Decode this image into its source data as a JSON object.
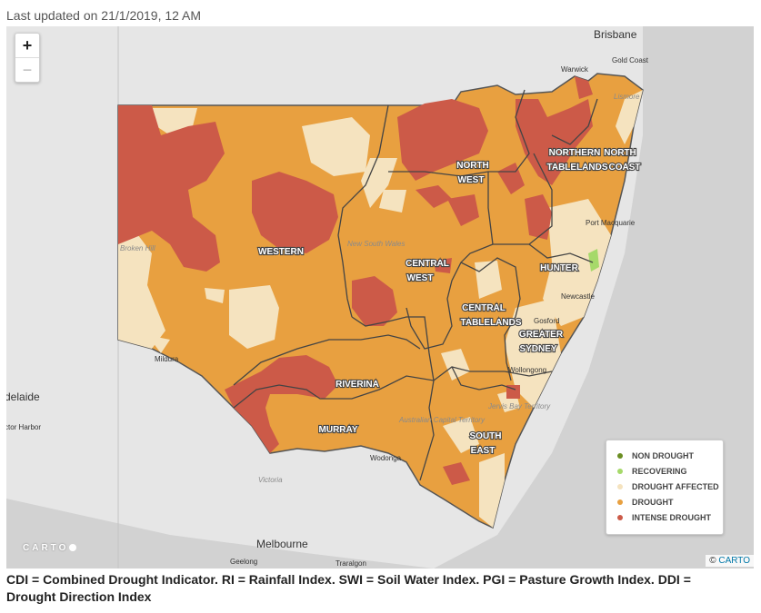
{
  "header": {
    "last_updated": "Last updated on 21/1/2019, 12 AM"
  },
  "map": {
    "zoom_in": "+",
    "zoom_out": "−",
    "regions": {
      "western": "WESTERN",
      "north_west_1": "NORTH",
      "north_west_2": "WEST",
      "northern_tablelands_1": "NORTHERN",
      "northern_tablelands_2": "TABLELANDS",
      "north_coast_1": "NORTH",
      "north_coast_2": "COAST",
      "hunter": "HUNTER",
      "central_west_1": "CENTRAL",
      "central_west_2": "WEST",
      "central_tablelands_1": "CENTRAL",
      "central_tablelands_2": "TABLELANDS",
      "greater_sydney_1": "GREATER",
      "greater_sydney_2": "SYDNEY",
      "riverina": "RIVERINA",
      "murray": "MURRAY",
      "south_east_1": "SOUTH",
      "south_east_2": "EAST"
    },
    "places": {
      "brisbane": "Brisbane",
      "gold_coast": "Gold Coast",
      "warwick": "Warwick",
      "lismore": "Lismore",
      "port_macquarie": "Port Macquarie",
      "newcastle": "Newcastle",
      "gosford": "Gosford",
      "wollongong": "Wollongong",
      "broken_hill": "Broken Hill",
      "mildura": "Mildura",
      "adelaide": "delaide",
      "victor_harbor": "ctor Harbor",
      "wodonga": "Wodonga",
      "victoria": "Victoria",
      "melbourne": "Melbourne",
      "geelong": "Geelong",
      "traralgon": "Traralgon",
      "new_south_wales": "New South Wales",
      "act": "Australian Capital Territory",
      "jervis_bay": "Jervis Bay Territory"
    },
    "legend": [
      {
        "label": "NON DROUGHT",
        "color": "#6b8e23"
      },
      {
        "label": "RECOVERING",
        "color": "#a6d96a"
      },
      {
        "label": "DROUGHT AFFECTED",
        "color": "#f5e3bf"
      },
      {
        "label": "DROUGHT",
        "color": "#e8a040"
      },
      {
        "label": "INTENSE DROUGHT",
        "color": "#cc5a48"
      }
    ],
    "carto_logo": "CARTO",
    "attribution_prefix": "© ",
    "attribution_link": "CARTO"
  },
  "caption": "CDI = Combined Drought Indicator. RI = Rainfall Index. SWI = Soil Water Index. PGI = Pasture Growth Index. DDI = Drought Direction Index"
}
